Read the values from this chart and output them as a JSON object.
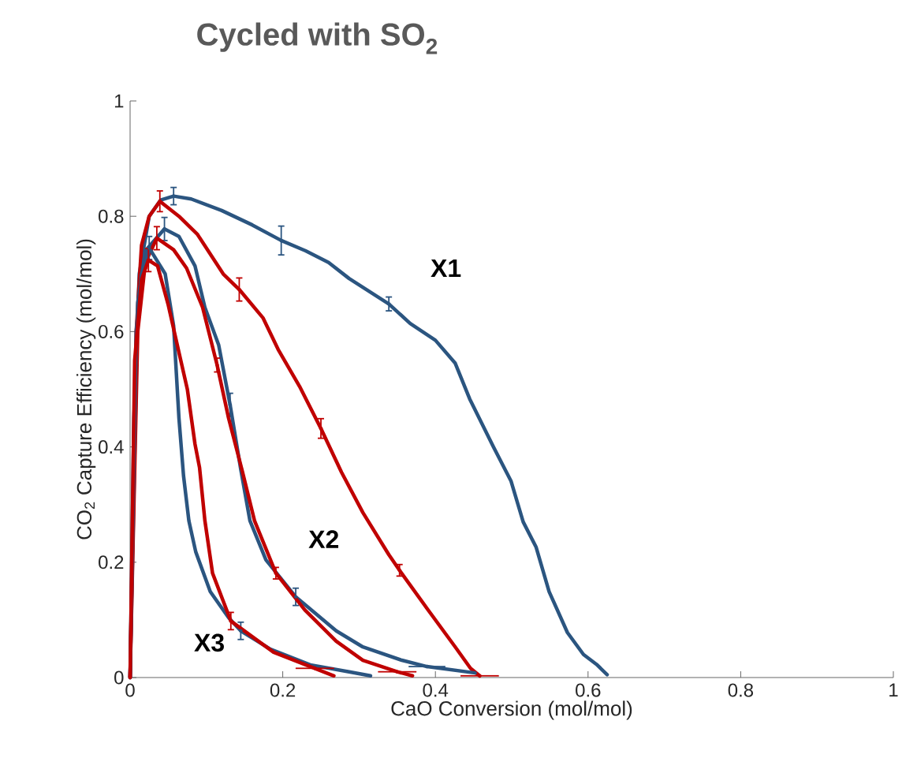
{
  "chart_data": {
    "type": "line",
    "title": "Cycled with SO$_{2}$",
    "xlabel": "CaO Conversion (mol/mol)",
    "ylabel": "CO$_{2}$ Capture Efficiency (mol/mol)",
    "xlim": [
      0,
      1
    ],
    "ylim": [
      0,
      1
    ],
    "xticks": [
      0,
      0.2,
      0.4,
      0.6,
      0.8,
      1
    ],
    "yticks": [
      0,
      0.2,
      0.4,
      0.6,
      0.8,
      1
    ],
    "line_style": "solid",
    "annotations": [
      "X1",
      "X2",
      "X3"
    ],
    "series": [
      {
        "color": "#2b5580",
        "x": [
          0,
          0.005,
          0.012,
          0.025,
          0.04,
          0.057,
          0.08,
          0.12,
          0.16,
          0.198,
          0.23,
          0.26,
          0.287,
          0.339,
          0.367,
          0.4,
          0.426,
          0.445,
          0.476,
          0.499,
          0.515,
          0.532,
          0.549,
          0.573,
          0.594,
          0.611,
          0.625
        ],
        "values": [
          0,
          0.45,
          0.7,
          0.8,
          0.828,
          0.835,
          0.83,
          0.81,
          0.785,
          0.758,
          0.74,
          0.72,
          0.692,
          0.648,
          0.614,
          0.585,
          0.545,
          0.483,
          0.4,
          0.341,
          0.27,
          0.226,
          0.149,
          0.078,
          0.04,
          0.023,
          0.005
        ],
        "errors": [
          null,
          null,
          null,
          null,
          null,
          0.015,
          null,
          null,
          null,
          0.025,
          null,
          null,
          null,
          0.012,
          null,
          null,
          null,
          null,
          null,
          null,
          null,
          null,
          null,
          null,
          null,
          null,
          null
        ]
      },
      {
        "color": "#c00000",
        "x": [
          0,
          0.008,
          0.015,
          0.025,
          0.039,
          0.064,
          0.088,
          0.122,
          0.143,
          0.174,
          0.194,
          0.222,
          0.25,
          0.277,
          0.305,
          0.339,
          0.353,
          0.39,
          0.426,
          0.446,
          0.458
        ],
        "values": [
          0,
          0.6,
          0.75,
          0.8,
          0.826,
          0.8,
          0.769,
          0.7,
          0.673,
          0.624,
          0.569,
          0.505,
          0.432,
          0.356,
          0.286,
          0.213,
          0.186,
          0.118,
          0.053,
          0.016,
          0.003
        ],
        "errors": [
          null,
          null,
          null,
          null,
          0.018,
          null,
          null,
          null,
          0.02,
          null,
          null,
          null,
          0.017,
          null,
          null,
          null,
          0.01,
          null,
          null,
          null,
          null
        ],
        "xerrors": [
          null,
          null,
          null,
          null,
          null,
          null,
          null,
          null,
          null,
          null,
          null,
          null,
          null,
          null,
          null,
          null,
          null,
          null,
          null,
          null,
          0.025
        ]
      },
      {
        "color": "#2b5580",
        "x": [
          0,
          0.01,
          0.02,
          0.045,
          0.064,
          0.085,
          0.098,
          0.116,
          0.131,
          0.145,
          0.157,
          0.178,
          0.217,
          0.27,
          0.305,
          0.356,
          0.389,
          0.452
        ],
        "values": [
          0,
          0.65,
          0.74,
          0.778,
          0.765,
          0.714,
          0.642,
          0.577,
          0.473,
          0.361,
          0.272,
          0.204,
          0.14,
          0.081,
          0.053,
          0.03,
          0.019,
          0.008
        ],
        "errors": [
          null,
          null,
          null,
          0.02,
          null,
          null,
          null,
          null,
          0.02,
          null,
          null,
          null,
          0.015,
          null,
          null,
          null,
          null,
          null
        ],
        "xerrors": [
          null,
          null,
          null,
          null,
          null,
          null,
          null,
          null,
          null,
          null,
          null,
          null,
          null,
          null,
          null,
          null,
          0.024,
          null
        ]
      },
      {
        "color": "#c00000",
        "x": [
          0,
          0.01,
          0.02,
          0.035,
          0.057,
          0.074,
          0.095,
          0.114,
          0.129,
          0.147,
          0.163,
          0.191,
          0.229,
          0.27,
          0.305,
          0.35,
          0.37
        ],
        "values": [
          0,
          0.6,
          0.72,
          0.762,
          0.742,
          0.71,
          0.642,
          0.542,
          0.45,
          0.358,
          0.272,
          0.181,
          0.117,
          0.063,
          0.03,
          0.01,
          0.003
        ],
        "errors": [
          null,
          null,
          null,
          0.02,
          null,
          null,
          null,
          0.012,
          null,
          null,
          null,
          0.01,
          null,
          null,
          null,
          null,
          null
        ],
        "xerrors": [
          null,
          null,
          null,
          null,
          null,
          null,
          null,
          null,
          null,
          null,
          null,
          null,
          null,
          null,
          null,
          0.025,
          null
        ]
      },
      {
        "color": "#2b5580",
        "x": [
          0,
          0.008,
          0.015,
          0.025,
          0.046,
          0.057,
          0.064,
          0.07,
          0.077,
          0.086,
          0.105,
          0.129,
          0.145,
          0.184,
          0.236,
          0.287,
          0.315
        ],
        "values": [
          0,
          0.6,
          0.7,
          0.745,
          0.7,
          0.61,
          0.45,
          0.35,
          0.272,
          0.218,
          0.149,
          0.104,
          0.081,
          0.049,
          0.022,
          0.01,
          0.003
        ],
        "errors": [
          null,
          null,
          null,
          0.02,
          null,
          null,
          null,
          null,
          null,
          null,
          null,
          null,
          0.015,
          null,
          null,
          null,
          null
        ]
      },
      {
        "color": "#c00000",
        "x": [
          0,
          0.006,
          0.015,
          0.024,
          0.036,
          0.05,
          0.064,
          0.075,
          0.085,
          0.091,
          0.098,
          0.108,
          0.132,
          0.188,
          0.242,
          0.267
        ],
        "values": [
          0,
          0.55,
          0.69,
          0.724,
          0.714,
          0.646,
          0.564,
          0.5,
          0.405,
          0.364,
          0.272,
          0.181,
          0.098,
          0.044,
          0.016,
          0.003
        ],
        "errors": [
          null,
          null,
          null,
          0.02,
          null,
          null,
          null,
          null,
          null,
          null,
          null,
          null,
          0.015,
          null,
          null,
          null
        ],
        "xerrors": [
          null,
          null,
          null,
          null,
          null,
          null,
          null,
          null,
          null,
          null,
          null,
          null,
          null,
          null,
          0.025,
          null
        ]
      }
    ]
  }
}
